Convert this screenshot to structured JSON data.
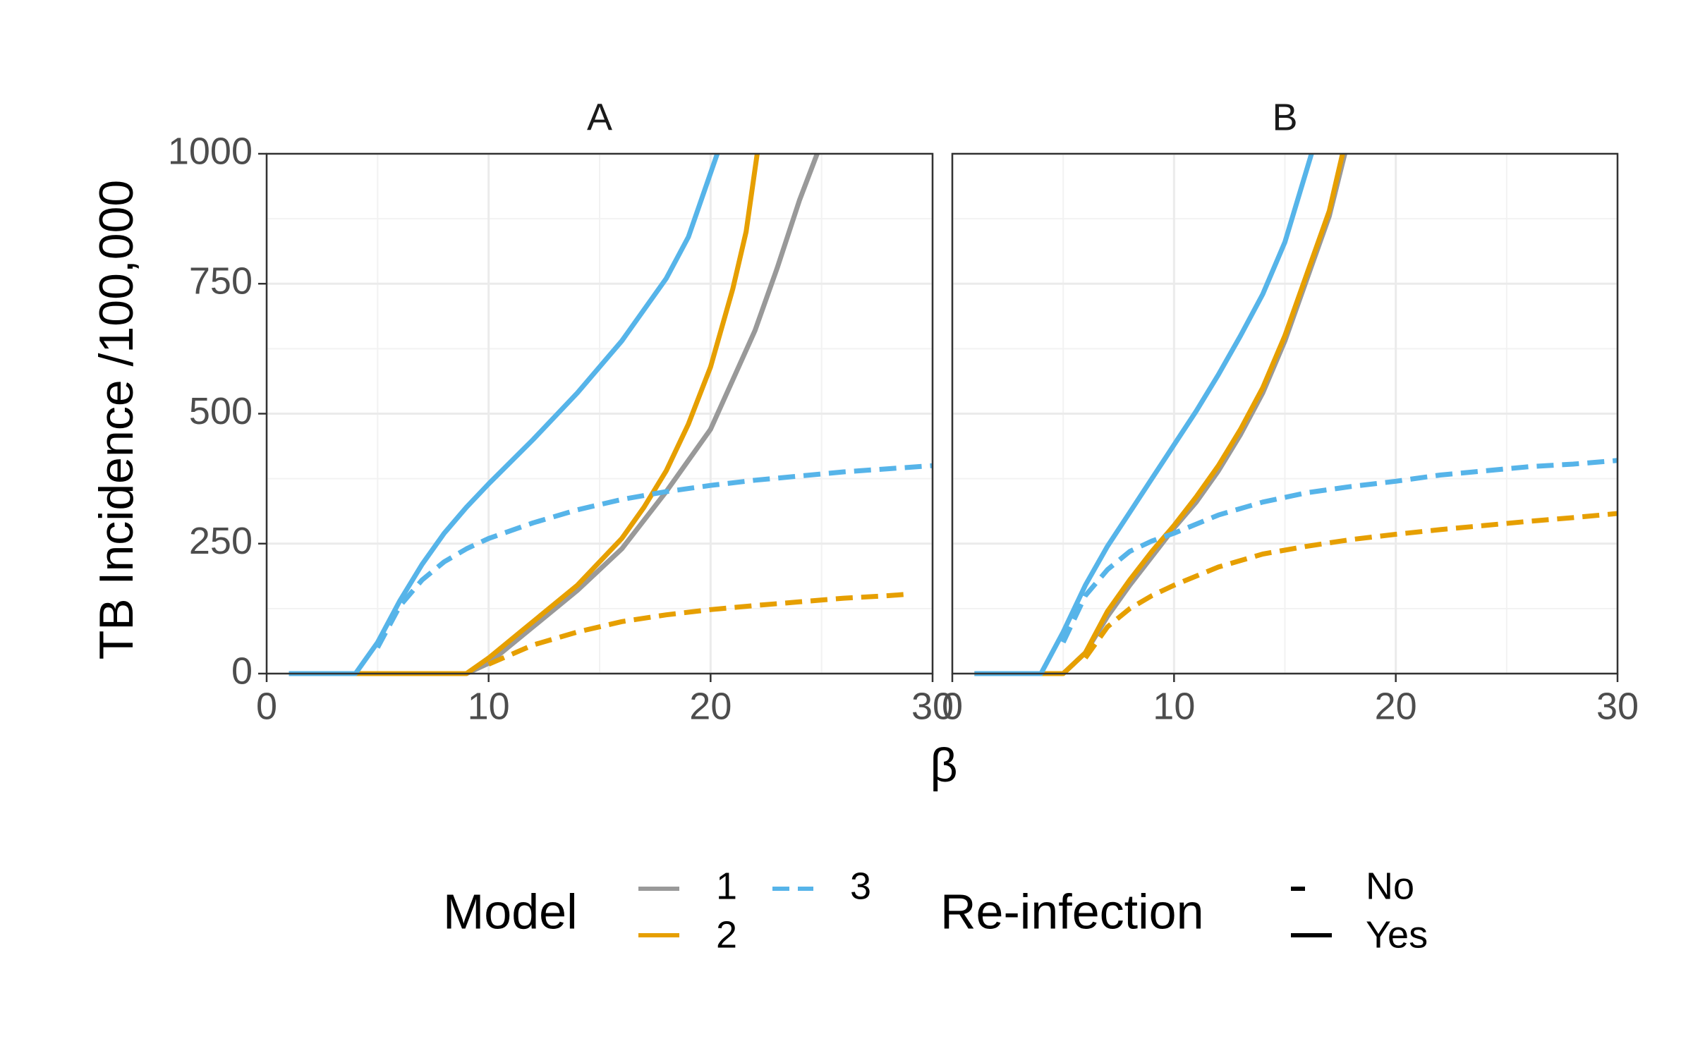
{
  "chart_data": {
    "type": "line",
    "ylabel": "TB Incidence /100,000",
    "xlabel": "β",
    "xlim": [
      0,
      30
    ],
    "ylim": [
      0,
      1000
    ],
    "x_ticks": [
      0,
      10,
      20,
      30
    ],
    "y_ticks": [
      0,
      250,
      500,
      750,
      1000
    ],
    "grid": true,
    "legend_position": "bottom",
    "legend": {
      "model_title": "Model",
      "models": [
        {
          "label": "1",
          "color": "#999999"
        },
        {
          "label": "2",
          "color": "#E69F00"
        },
        {
          "label": "3",
          "color": "#56B4E9"
        }
      ],
      "reinfection_title": "Re-infection",
      "reinfection": [
        {
          "label": "No",
          "linetype": "dashed"
        },
        {
          "label": "Yes",
          "linetype": "solid"
        }
      ]
    },
    "panels": [
      {
        "title": "A",
        "series": [
          {
            "model": "1",
            "reinfection": "Yes",
            "x": [
              1,
              4,
              5,
              9,
              10,
              12,
              14,
              16,
              18,
              20,
              22,
              23,
              24,
              24.8
            ],
            "y": [
              0,
              0,
              0,
              0,
              20,
              90,
              160,
              240,
              350,
              470,
              660,
              780,
              910,
              1000
            ]
          },
          {
            "model": "2",
            "reinfection": "Yes",
            "x": [
              1,
              4,
              5,
              9,
              10,
              12,
              14,
              16,
              17,
              18,
              19,
              20,
              21,
              21.6,
              22.1
            ],
            "y": [
              0,
              0,
              0,
              0,
              30,
              100,
              170,
              260,
              320,
              390,
              480,
              590,
              740,
              850,
              1000
            ]
          },
          {
            "model": "3",
            "reinfection": "Yes",
            "x": [
              1,
              4,
              5,
              6,
              7,
              8,
              9,
              10,
              12,
              14,
              16,
              18,
              19,
              20.3
            ],
            "y": [
              0,
              0,
              60,
              140,
              210,
              270,
              320,
              365,
              450,
              540,
              640,
              760,
              840,
              1000
            ]
          },
          {
            "model": "2",
            "reinfection": "No",
            "x": [
              10,
              12,
              14,
              16,
              18,
              20,
              22,
              24,
              26,
              28,
              29
            ],
            "y": [
              18,
              55,
              80,
              100,
              113,
              123,
              131,
              138,
              145,
              150,
              153
            ]
          },
          {
            "model": "3",
            "reinfection": "No",
            "x": [
              5,
              6,
              7,
              8,
              9,
              10,
              12,
              14,
              16,
              18,
              20,
              22,
              24,
              26,
              28,
              30
            ],
            "y": [
              50,
              130,
              180,
              215,
              240,
              260,
              290,
              315,
              335,
              350,
              362,
              372,
              380,
              388,
              394,
              400
            ]
          }
        ]
      },
      {
        "title": "B",
        "series": [
          {
            "model": "1",
            "reinfection": "Yes",
            "x": [
              1,
              4,
              5,
              6,
              7,
              8,
              9,
              10,
              11,
              12,
              13,
              14,
              15,
              16,
              17,
              17.7
            ],
            "y": [
              0,
              0,
              0,
              40,
              110,
              170,
              225,
              280,
              330,
              390,
              460,
              540,
              640,
              760,
              880,
              1000
            ]
          },
          {
            "model": "2",
            "reinfection": "Yes",
            "x": [
              1,
              4,
              5,
              6,
              7,
              8,
              9,
              10,
              11,
              12,
              13,
              14,
              15,
              16,
              17,
              17.6
            ],
            "y": [
              0,
              0,
              0,
              40,
              120,
              180,
              235,
              285,
              340,
              400,
              470,
              550,
              650,
              770,
              890,
              1000
            ]
          },
          {
            "model": "3",
            "reinfection": "Yes",
            "x": [
              1,
              4,
              5,
              6,
              7,
              8,
              9,
              10,
              11,
              12,
              13,
              14,
              15,
              16.2
            ],
            "y": [
              0,
              0,
              80,
              170,
              245,
              310,
              375,
              440,
              505,
              575,
              650,
              730,
              830,
              1000
            ]
          },
          {
            "model": "2",
            "reinfection": "No",
            "x": [
              6,
              7,
              8,
              9,
              10,
              12,
              14,
              16,
              18,
              20,
              22,
              24,
              26,
              28,
              30
            ],
            "y": [
              30,
              90,
              125,
              150,
              170,
              205,
              230,
              245,
              258,
              268,
              277,
              285,
              293,
              300,
              308
            ]
          },
          {
            "model": "3",
            "reinfection": "No",
            "x": [
              5,
              6,
              7,
              8,
              9,
              10,
              12,
              14,
              16,
              18,
              20,
              22,
              24,
              26,
              28,
              30
            ],
            "y": [
              60,
              150,
              200,
              235,
              255,
              270,
              305,
              330,
              348,
              360,
              370,
              382,
              390,
              398,
              403,
              410
            ]
          }
        ]
      }
    ]
  }
}
